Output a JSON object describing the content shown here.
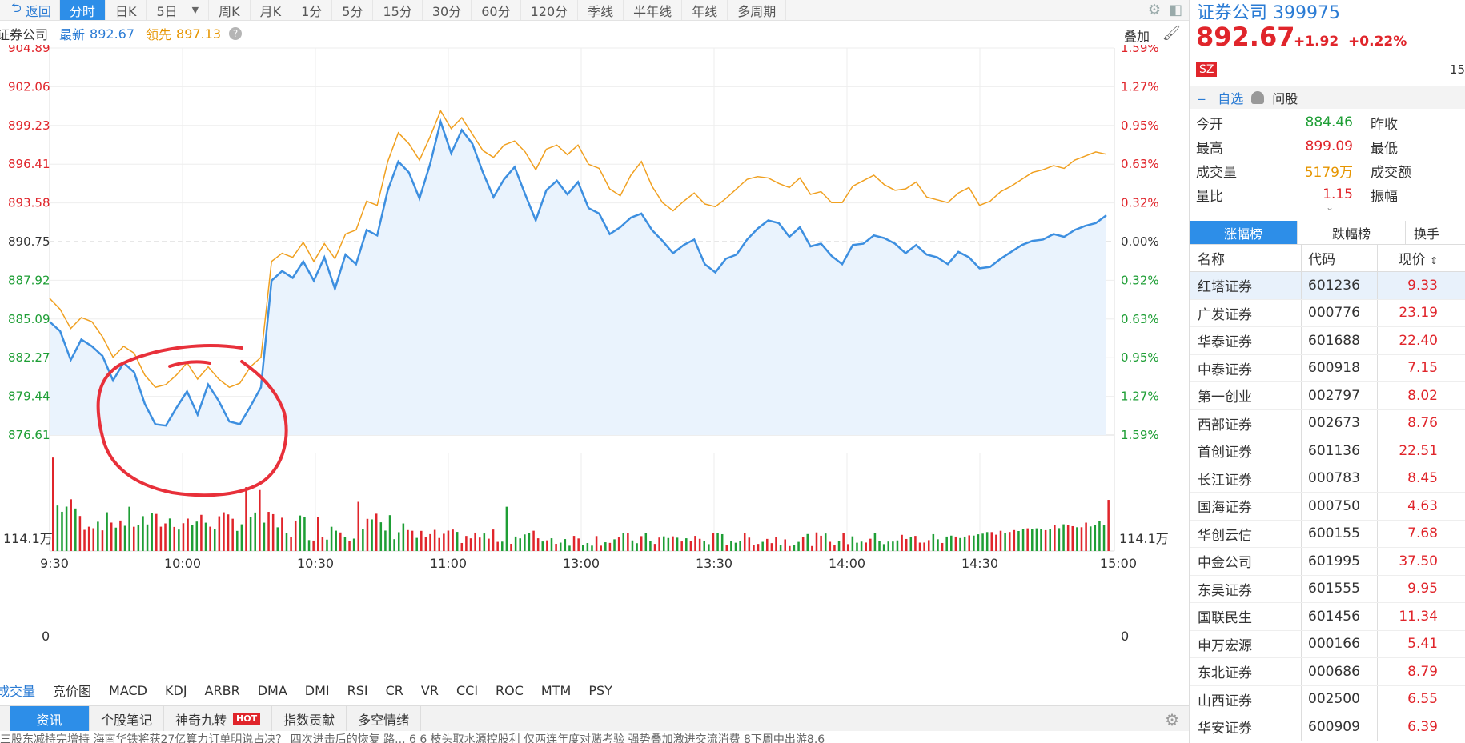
{
  "toolbar": {
    "back_label": "返回",
    "tabs": [
      "分时",
      "日K",
      "5日",
      "周K",
      "月K",
      "1分",
      "5分",
      "15分",
      "30分",
      "60分",
      "120分",
      "季线",
      "半年线",
      "年线",
      "多周期"
    ],
    "active_index": 0
  },
  "quote": {
    "name": "证券公司",
    "latest_label": "最新",
    "latest_value": "892.67",
    "lead_label": "领先",
    "lead_value": "897.13",
    "help": "?",
    "overlay_label": "叠加"
  },
  "chart": {
    "y_left": [
      "904.89",
      "902.06",
      "899.23",
      "896.41",
      "893.58",
      "890.75",
      "887.92",
      "885.09",
      "882.27",
      "879.44",
      "876.61"
    ],
    "y_right": [
      "1.59%",
      "1.27%",
      "0.95%",
      "0.63%",
      "0.32%",
      "0.00%",
      "0.32%",
      "0.63%",
      "0.95%",
      "1.27%",
      "1.59%"
    ],
    "vol_top_left": "114.1万",
    "vol_zero_left": "0",
    "vol_top_right": "114.1万",
    "vol_zero_right": "0",
    "time_labels": [
      "9:30",
      "10:00",
      "10:30",
      "11:00",
      "13:00",
      "13:30",
      "14:00",
      "14:30",
      "15:00"
    ],
    "colors": {
      "price": "#3d8fe0",
      "lead": "#f0a020",
      "fill": "#eaf3fd",
      "up": "#e0252b",
      "down": "#1e9e35",
      "annotation": "#e8303a"
    }
  },
  "chart_data": {
    "type": "line",
    "ylim": [
      876.61,
      904.89
    ],
    "prev_close": 890.75,
    "series": [
      {
        "name": "最新",
        "values": [
          884.9,
          884.2,
          882.1,
          883.6,
          883.1,
          882.4,
          880.6,
          881.9,
          881.2,
          878.9,
          877.4,
          877.3,
          878.6,
          879.8,
          878.1,
          880.3,
          879.1,
          877.6,
          877.4,
          878.7,
          880.1,
          887.9,
          888.6,
          888.1,
          889.3,
          887.9,
          889.6,
          887.3,
          889.8,
          889.1,
          891.6,
          891.2,
          894.5,
          896.6,
          895.8,
          893.9,
          896.4,
          899.5,
          897.2,
          898.9,
          897.9,
          895.8,
          894.0,
          895.3,
          896.2,
          894.2,
          892.3,
          894.5,
          895.2,
          894.2,
          895.1,
          893.2,
          892.8,
          891.3,
          891.8,
          892.5,
          892.8,
          891.6,
          890.8,
          889.9,
          890.5,
          890.9,
          889.1,
          888.5,
          889.5,
          889.8,
          890.9,
          891.7,
          892.3,
          892.1,
          891.1,
          891.8,
          890.4,
          890.6,
          889.7,
          889.1,
          890.5,
          890.6,
          891.2,
          891.0,
          890.6,
          889.9,
          890.5,
          889.8,
          889.6,
          889.1,
          890.0,
          889.6,
          888.8,
          888.9,
          889.5,
          890.0,
          890.5,
          890.8,
          890.9,
          891.3,
          891.1,
          891.6,
          891.9,
          892.1,
          892.67
        ]
      },
      {
        "name": "领先",
        "values": [
          886.6,
          885.8,
          884.4,
          885.2,
          884.9,
          883.8,
          882.3,
          883.1,
          882.6,
          881.0,
          880.1,
          880.3,
          881.0,
          881.9,
          880.7,
          881.6,
          880.7,
          880.1,
          880.4,
          881.6,
          882.3,
          889.3,
          889.9,
          889.6,
          890.7,
          889.3,
          890.6,
          889.5,
          891.3,
          891.6,
          893.7,
          893.4,
          896.6,
          898.7,
          897.9,
          896.7,
          898.4,
          900.3,
          899.0,
          899.8,
          898.6,
          897.4,
          896.9,
          897.8,
          898.1,
          897.3,
          896.0,
          897.5,
          897.8,
          897.1,
          897.8,
          896.4,
          896.1,
          894.6,
          894.1,
          895.6,
          896.6,
          894.8,
          893.6,
          893.0,
          893.7,
          894.3,
          893.5,
          893.3,
          893.9,
          894.6,
          895.3,
          895.5,
          895.4,
          895.0,
          894.7,
          895.4,
          894.2,
          894.4,
          893.6,
          893.6,
          894.8,
          895.2,
          895.6,
          894.9,
          894.5,
          894.6,
          895.1,
          894.0,
          893.8,
          893.6,
          894.3,
          894.7,
          893.4,
          893.7,
          894.4,
          894.8,
          895.3,
          895.8,
          896.0,
          896.3,
          896.1,
          896.7,
          897.0,
          897.3,
          897.13
        ]
      }
    ]
  },
  "indicators": [
    "成交量",
    "竞价图",
    "MACD",
    "KDJ",
    "ARBR",
    "DMA",
    "DMI",
    "RSI",
    "CR",
    "VR",
    "CCI",
    "ROC",
    "MTM",
    "PSY"
  ],
  "bottom_tabs": {
    "items": [
      "资讯",
      "个股笔记",
      "神奇九转",
      "指数贡献",
      "多空情绪"
    ],
    "hot_badge": "HOT",
    "ticker": "三股东减持完增持   海南华铁将获27亿算力订单明说占决？   四次进击后的恢复   路... 6   6 枝头取水源控股利   仅两连年度对赌考验   强势叠加激进交流消费 8下周中出游8.6"
  },
  "right_panel": {
    "name": "证券公司",
    "code": "399975",
    "price": "892.67",
    "change": "+1.92",
    "change_pct": "+0.22%",
    "exchange": "SZ",
    "right_num": "15",
    "actions": {
      "watch": "自选",
      "ask": "问股"
    },
    "stats": [
      {
        "k": "今开",
        "v": "884.46",
        "vc": "green",
        "k2": "昨收"
      },
      {
        "k": "最高",
        "v": "899.09",
        "vc": "red",
        "k2": "最低"
      },
      {
        "k": "成交量",
        "v": "5179万",
        "vc": "orange",
        "k2": "成交额"
      },
      {
        "k": "量比",
        "v": "1.15",
        "vc": "red",
        "k2": "振幅"
      }
    ],
    "more_arrow": "⌄",
    "tabs": [
      "涨幅榜",
      "跌幅榜",
      "换手"
    ],
    "head": {
      "name": "名称",
      "code": "代码",
      "price": "现价"
    },
    "list": [
      {
        "name": "红塔证券",
        "code": "601236",
        "price": "9.33"
      },
      {
        "name": "广发证券",
        "code": "000776",
        "price": "23.19"
      },
      {
        "name": "华泰证券",
        "code": "601688",
        "price": "22.40"
      },
      {
        "name": "中泰证券",
        "code": "600918",
        "price": "7.15"
      },
      {
        "name": "第一创业",
        "code": "002797",
        "price": "8.02"
      },
      {
        "name": "西部证券",
        "code": "002673",
        "price": "8.76"
      },
      {
        "name": "首创证券",
        "code": "601136",
        "price": "22.51"
      },
      {
        "name": "长江证券",
        "code": "000783",
        "price": "8.45"
      },
      {
        "name": "国海证券",
        "code": "000750",
        "price": "4.63"
      },
      {
        "name": "华创云信",
        "code": "600155",
        "price": "7.68"
      },
      {
        "name": "中金公司",
        "code": "601995",
        "price": "37.50"
      },
      {
        "name": "东吴证券",
        "code": "601555",
        "price": "9.95"
      },
      {
        "name": "国联民生",
        "code": "601456",
        "price": "11.34"
      },
      {
        "name": "申万宏源",
        "code": "000166",
        "price": "5.41"
      },
      {
        "name": "东北证券",
        "code": "000686",
        "price": "8.79"
      },
      {
        "name": "山西证券",
        "code": "002500",
        "price": "6.55"
      },
      {
        "name": "华安证券",
        "code": "600909",
        "price": "6.39"
      }
    ]
  }
}
